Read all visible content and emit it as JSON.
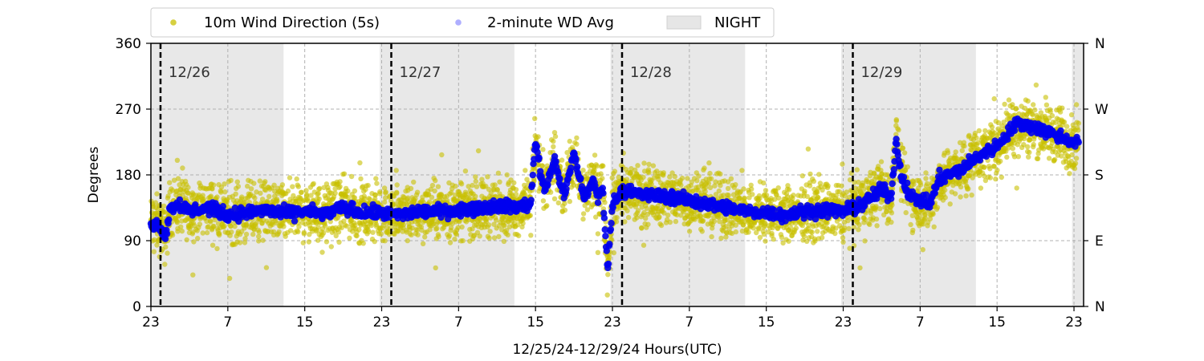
{
  "chart_data": {
    "type": "scatter",
    "xlabel": "12/25/24-12/29/24  Hours(UTC)",
    "ylabel": "Degrees",
    "ylim": [
      0,
      360
    ],
    "yticks": [
      0,
      90,
      180,
      270,
      360
    ],
    "right_ticks": [
      {
        "value": 0,
        "label": "N"
      },
      {
        "value": 90,
        "label": "E"
      },
      {
        "value": 180,
        "label": "S"
      },
      {
        "value": 270,
        "label": "W"
      },
      {
        "value": 360,
        "label": "N"
      }
    ],
    "x_unit": "hours since 12/25/24 23:00 UTC",
    "xlim": [
      0,
      97
    ],
    "x_ticks": [
      {
        "value": 0,
        "label": "23"
      },
      {
        "value": 8,
        "label": "7"
      },
      {
        "value": 16,
        "label": "15"
      },
      {
        "value": 24,
        "label": "23"
      },
      {
        "value": 32,
        "label": "7"
      },
      {
        "value": 40,
        "label": "15"
      },
      {
        "value": 48,
        "label": "23"
      },
      {
        "value": 56,
        "label": "7"
      },
      {
        "value": 64,
        "label": "15"
      },
      {
        "value": 72,
        "label": "23"
      },
      {
        "value": 80,
        "label": "7"
      },
      {
        "value": 88,
        "label": "15"
      },
      {
        "value": 96,
        "label": "23"
      }
    ],
    "grid": true,
    "legend_position": "top-left, outside",
    "legend": [
      {
        "name": "10m Wind Direction (5s)",
        "kind": "dot",
        "color": "#c8c000"
      },
      {
        "name": "2-minute WD Avg",
        "kind": "dot",
        "color": "#7878ff"
      },
      {
        "name": "NIGHT",
        "kind": "patch",
        "color": "#e6e6e6"
      }
    ],
    "night_spans": [
      [
        0,
        13.8
      ],
      [
        23.8,
        37.8
      ],
      [
        47.8,
        61.8
      ],
      [
        71.8,
        85.8
      ],
      [
        95.8,
        97
      ]
    ],
    "day_markers": [
      {
        "x": 1,
        "label": "12/26"
      },
      {
        "x": 25,
        "label": "12/27"
      },
      {
        "x": 49,
        "label": "12/28"
      },
      {
        "x": 73,
        "label": "12/29"
      }
    ],
    "series": [
      {
        "name": "10m Wind Direction (5s)",
        "color": "#c8c000",
        "x": [
          0,
          1,
          1.5,
          2,
          3,
          4,
          6,
          8,
          10,
          12,
          14,
          16,
          18,
          20,
          22,
          24,
          26,
          28,
          30,
          32,
          34,
          36,
          38,
          39.5,
          40,
          40.5,
          41,
          42,
          43,
          44,
          45,
          46,
          46.5,
          47,
          47.5,
          48,
          49,
          50,
          52,
          54,
          56,
          58,
          60,
          62,
          64,
          66,
          68,
          70,
          72,
          73,
          74,
          75,
          76,
          77,
          77.5,
          78,
          79,
          80,
          81,
          82,
          84,
          86,
          88,
          90,
          92,
          93,
          94,
          95,
          96,
          96.5
        ],
        "y": [
          115,
          110,
          95,
          135,
          140,
          130,
          135,
          125,
          128,
          132,
          127,
          130,
          126,
          135,
          128,
          128,
          125,
          130,
          130,
          132,
          135,
          138,
          136,
          140,
          230,
          180,
          160,
          200,
          150,
          210,
          150,
          170,
          150,
          160,
          50,
          140,
          160,
          155,
          152,
          150,
          145,
          140,
          135,
          130,
          128,
          125,
          130,
          132,
          130,
          135,
          140,
          150,
          160,
          150,
          230,
          180,
          150,
          145,
          140,
          175,
          185,
          205,
          220,
          250,
          245,
          240,
          235,
          230,
          225,
          225
        ],
        "spread": 42
      },
      {
        "name": "2-minute WD Avg",
        "color": "#0000ee",
        "x": [
          0,
          1,
          1.5,
          2,
          3,
          4,
          6,
          8,
          10,
          12,
          14,
          16,
          18,
          20,
          22,
          24,
          26,
          28,
          30,
          32,
          34,
          36,
          38,
          39.5,
          40,
          40.5,
          41,
          42,
          43,
          44,
          45,
          46,
          46.5,
          47,
          47.5,
          48,
          49,
          50,
          52,
          54,
          56,
          58,
          60,
          62,
          64,
          66,
          68,
          70,
          72,
          73,
          74,
          75,
          76,
          77,
          77.5,
          78,
          79,
          80,
          81,
          82,
          84,
          86,
          88,
          90,
          92,
          93,
          94,
          95,
          96,
          96.5
        ],
        "y": [
          115,
          110,
          95,
          135,
          140,
          130,
          135,
          125,
          128,
          132,
          127,
          130,
          126,
          135,
          128,
          128,
          125,
          130,
          130,
          132,
          135,
          138,
          136,
          140,
          230,
          180,
          160,
          200,
          150,
          210,
          150,
          170,
          150,
          160,
          50,
          140,
          160,
          155,
          152,
          150,
          145,
          140,
          135,
          130,
          128,
          125,
          130,
          132,
          130,
          135,
          140,
          150,
          160,
          150,
          230,
          180,
          150,
          145,
          140,
          175,
          185,
          205,
          220,
          250,
          245,
          240,
          235,
          230,
          225,
          225
        ],
        "spread": 14
      }
    ]
  }
}
